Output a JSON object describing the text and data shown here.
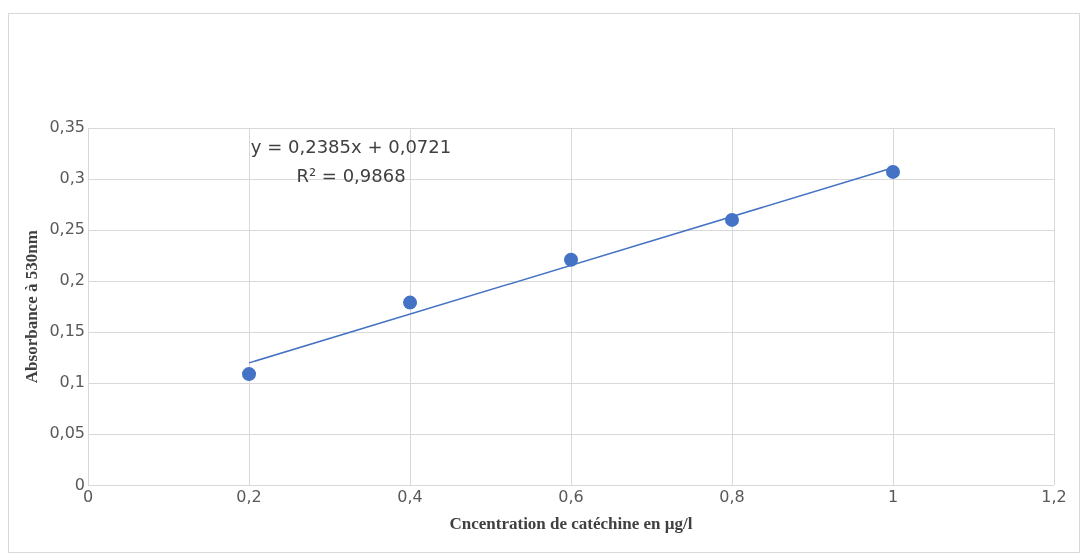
{
  "chart_data": {
    "type": "scatter",
    "xlabel": "Cncentration de catéchine en µg/l",
    "ylabel": "Absorbance à 530nm",
    "annotations": [
      "y = 0,2385x + 0,0721",
      "R² = 0,9868"
    ],
    "xlim": [
      0,
      1.2
    ],
    "xticks": [
      {
        "value": 0,
        "label": "0"
      },
      {
        "value": 0.2,
        "label": "0,2"
      },
      {
        "value": 0.4,
        "label": "0,4"
      },
      {
        "value": 0.6,
        "label": "0,6"
      },
      {
        "value": 0.8,
        "label": "0,8"
      },
      {
        "value": 1,
        "label": "1"
      },
      {
        "value": 1.2,
        "label": "1,2"
      }
    ],
    "ylim": [
      0,
      0.35
    ],
    "yticks": [
      {
        "value": 0,
        "label": "0"
      },
      {
        "value": 0.05,
        "label": "0,05"
      },
      {
        "value": 0.1,
        "label": "0,1"
      },
      {
        "value": 0.15,
        "label": "0,15"
      },
      {
        "value": 0.2,
        "label": "0,2"
      },
      {
        "value": 0.25,
        "label": "0,25"
      },
      {
        "value": 0.3,
        "label": "0,3"
      },
      {
        "value": 0.35,
        "label": "0,35"
      }
    ],
    "grid": true,
    "series": [
      {
        "type": "scatter",
        "marker": "circle",
        "color": "#4472c4",
        "x": [
          0.2,
          0.4,
          0.6,
          0.8,
          1
        ],
        "values": [
          0.109,
          0.179,
          0.221,
          0.26,
          0.307
        ]
      },
      {
        "type": "line",
        "marker": "none",
        "color": "#4472c4",
        "x": [
          0.2,
          1
        ],
        "values": [
          0.12,
          0.311
        ]
      }
    ]
  }
}
